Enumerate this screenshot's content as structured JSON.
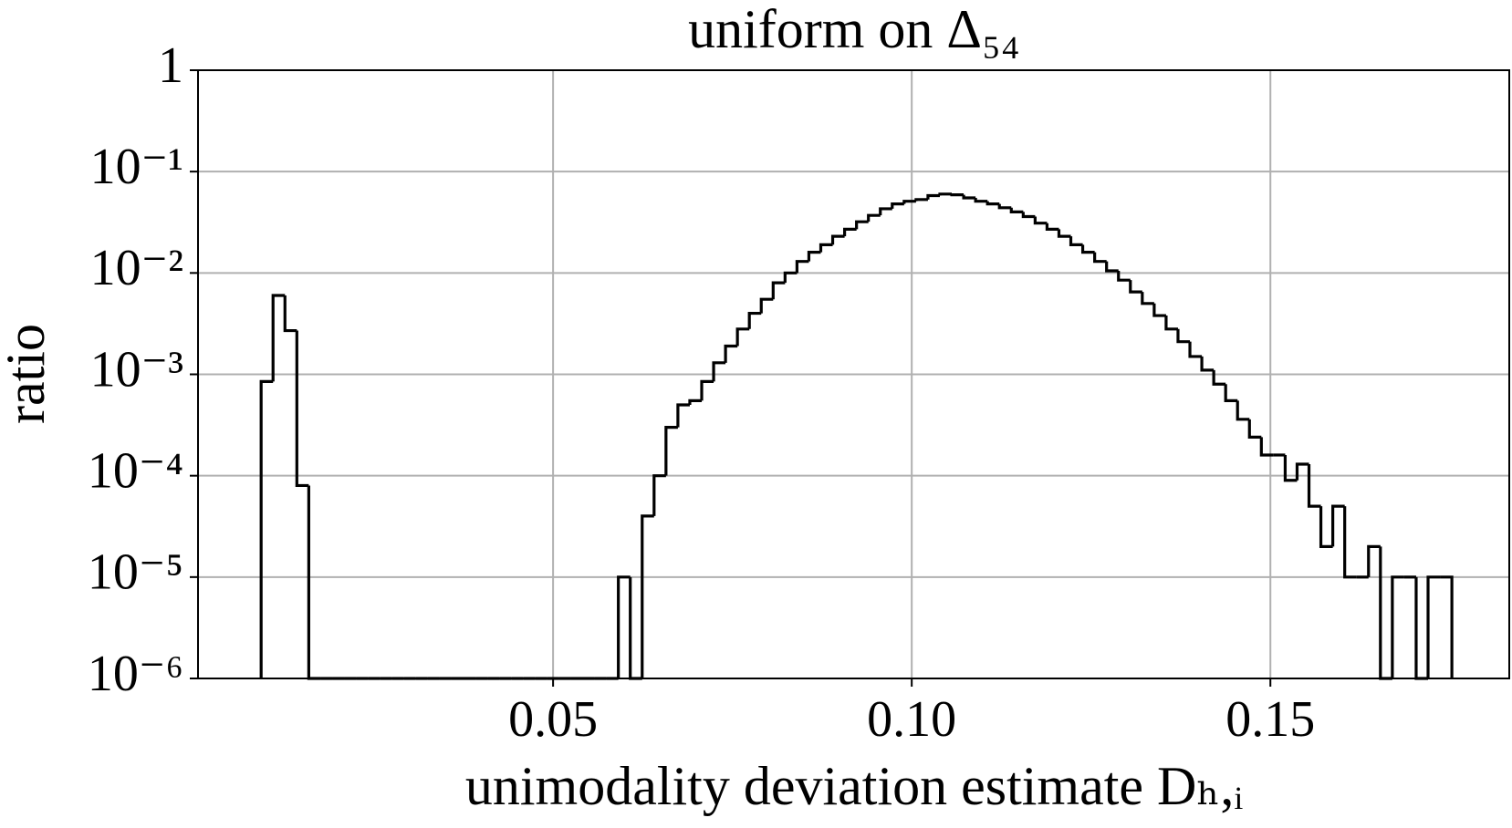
{
  "chart_data": {
    "type": "histogram",
    "title": "uniform on Δ₅₄",
    "xlabel": "unimodality deviation estimate Dₕ,ᵢ",
    "ylabel": "ratio",
    "color": "#000000",
    "log_y": true,
    "grid": true,
    "bins": [
      0.0093,
      0.01096,
      0.01262,
      0.01428,
      0.01594,
      0.0176,
      0.01926,
      0.02092,
      0.02258,
      0.02424,
      0.0259,
      0.02756,
      0.02922,
      0.03088,
      0.03254,
      0.0342,
      0.03586,
      0.03752,
      0.03918,
      0.04084,
      0.0425,
      0.04416,
      0.04582,
      0.04748,
      0.04914,
      0.0508,
      0.05246,
      0.05412,
      0.05578,
      0.05744,
      0.0591,
      0.06076,
      0.06242,
      0.06408,
      0.06574,
      0.0674,
      0.06906,
      0.07072,
      0.07238,
      0.07404,
      0.0757,
      0.07736,
      0.07902,
      0.08068,
      0.08234,
      0.084,
      0.08566,
      0.08732,
      0.08898,
      0.09064,
      0.0923,
      0.09396,
      0.09562,
      0.09728,
      0.09894,
      0.1006,
      0.10226,
      0.10392,
      0.10558,
      0.10724,
      0.1089,
      0.11056,
      0.11222,
      0.11388,
      0.11554,
      0.1172,
      0.11886,
      0.12052,
      0.12218,
      0.12384,
      0.1255,
      0.12716,
      0.12882,
      0.13048,
      0.13214,
      0.1338,
      0.13546,
      0.13712,
      0.13878,
      0.14044,
      0.1421,
      0.14376,
      0.14542,
      0.14708,
      0.14874,
      0.1504,
      0.15206,
      0.15372,
      0.15538,
      0.15704,
      0.1587,
      0.16036,
      0.16202,
      0.16368,
      0.16534,
      0.167,
      0.16866,
      0.17032,
      0.17198,
      0.17364,
      0.1753
    ],
    "values": [
      0.00085,
      0.006,
      0.0027,
      8e-05,
      0,
      0,
      0,
      0,
      0,
      0,
      0,
      0,
      0,
      0,
      0,
      0,
      0,
      0,
      0,
      0,
      0,
      0,
      0,
      0,
      0,
      0,
      0,
      0,
      0,
      0,
      1e-05,
      0,
      4e-05,
      0.0001,
      0.0003,
      0.0005,
      0.00055,
      0.00085,
      0.0013,
      0.0019,
      0.0028,
      0.004,
      0.0055,
      0.008,
      0.01,
      0.013,
      0.016,
      0.019,
      0.023,
      0.027,
      0.032,
      0.037,
      0.043,
      0.048,
      0.051,
      0.053,
      0.058,
      0.06,
      0.059,
      0.055,
      0.051,
      0.048,
      0.044,
      0.04,
      0.036,
      0.031,
      0.027,
      0.023,
      0.019,
      0.016,
      0.013,
      0.0105,
      0.0085,
      0.0065,
      0.005,
      0.0038,
      0.0028,
      0.0021,
      0.0015,
      0.0011,
      0.0008,
      0.00055,
      0.00036,
      0.00024,
      0.00016,
      0.00016,
      9e-05,
      0.00013,
      5e-05,
      2e-05,
      5e-05,
      1e-05,
      1e-05,
      2e-05,
      0,
      1e-05,
      1e-05,
      0,
      1e-05,
      1e-05
    ],
    "xlim": [
      0.0005,
      0.1833
    ],
    "ylim": [
      1e-06,
      1
    ],
    "xticks": [
      0.05,
      {
        "value": 0.1,
        "label": "0.10"
      },
      0.15
    ],
    "yticks": [
      {
        "value": 1e-06,
        "label": "10⁻⁶"
      },
      {
        "value": 1e-05,
        "label": "10⁻⁵"
      },
      {
        "value": 0.0001,
        "label": "10⁻⁴"
      },
      {
        "value": 0.001,
        "label": "10⁻³"
      },
      {
        "value": 0.01,
        "label": "10⁻²"
      },
      {
        "value": 0.1,
        "label": "10⁻¹"
      },
      1
    ]
  }
}
